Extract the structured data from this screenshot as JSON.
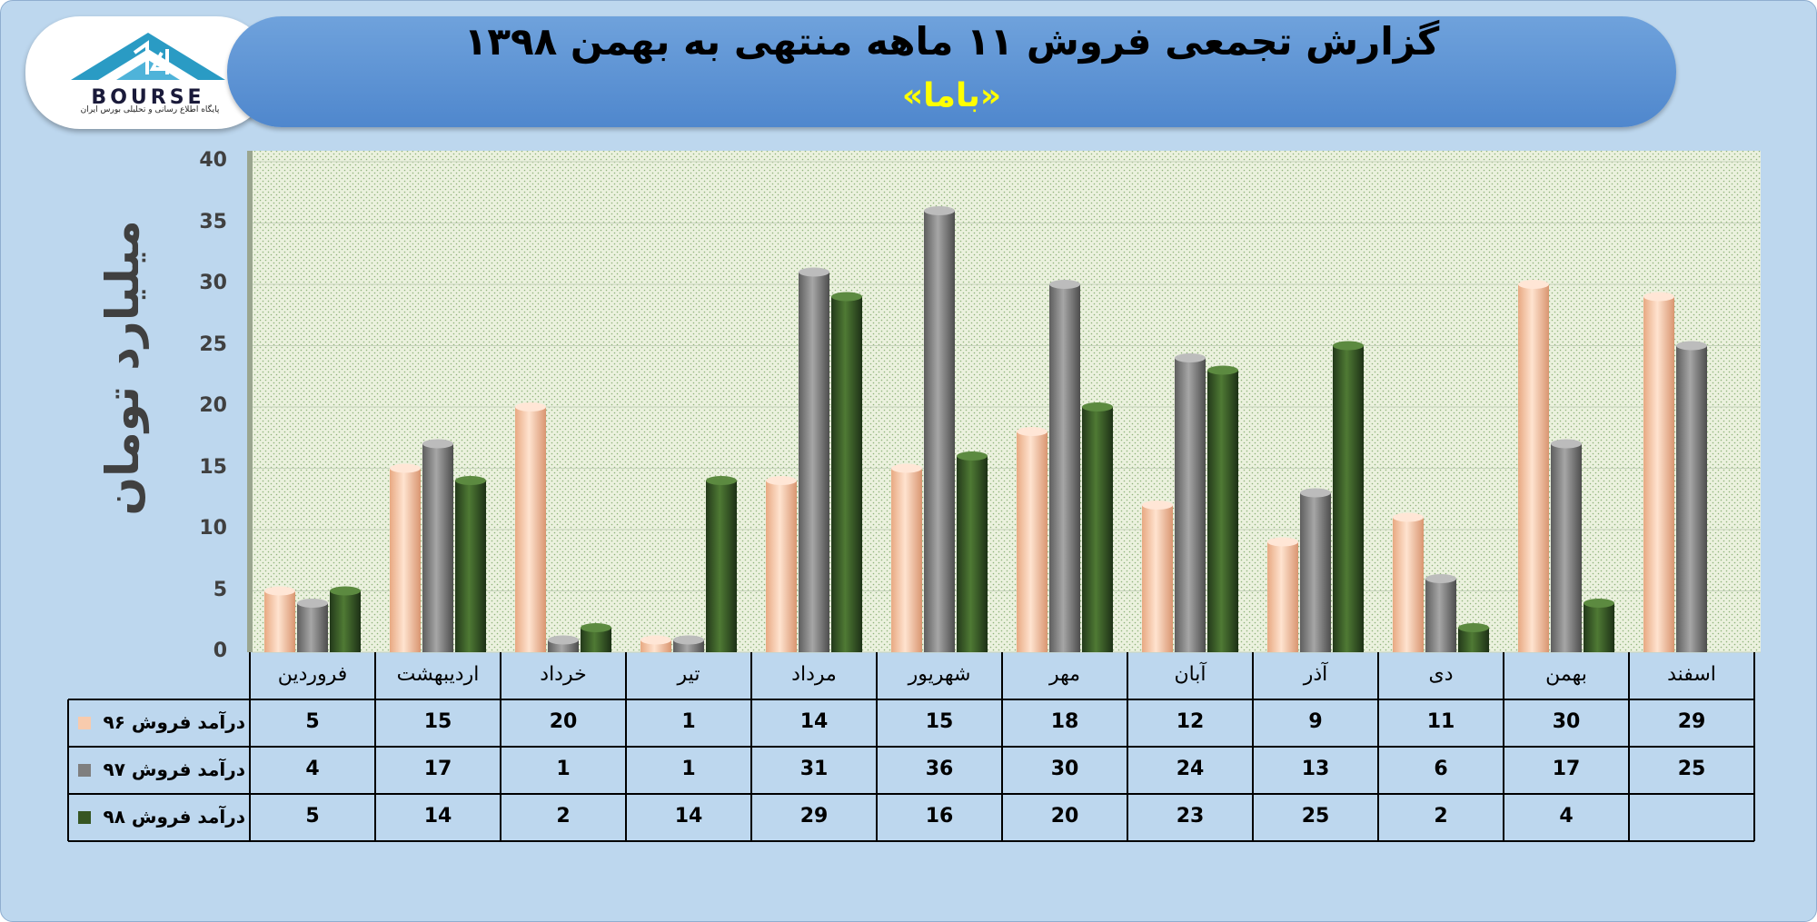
{
  "header": {
    "title": "گزارش تجمعی فروش ۱۱ ماهه منتهی به بهمن ۱۳۹۸",
    "subtitle": "«باما»"
  },
  "logo": {
    "name": "BOURSE",
    "tagline": "پایگاه اطلاع رسانی و تحلیلی بورس ایران"
  },
  "colors": {
    "s96": "#f8cbad",
    "s97": "#7f7f7f",
    "s98": "#375623",
    "plot_bg": "#ebf1de",
    "frame_bg": "#bdd7ee"
  },
  "chart_data": {
    "type": "bar",
    "ylabel": "میلیارد تومان",
    "ylim": [
      0,
      40
    ],
    "yticks": [
      "0",
      "5",
      "10",
      "15",
      "20",
      "25",
      "30",
      "35",
      "40"
    ],
    "grid": true,
    "categories": [
      "فروردین",
      "اردیبهشت",
      "خرداد",
      "تیر",
      "مرداد",
      "شهریور",
      "مهر",
      "آبان",
      "آذر",
      "دی",
      "بهمن",
      "اسفند"
    ],
    "series": [
      {
        "name": "درآمد فروش ۹۶",
        "values": [
          5,
          15,
          20,
          1,
          14,
          15,
          18,
          12,
          9,
          11,
          30,
          29
        ]
      },
      {
        "name": "درآمد فروش ۹۷",
        "values": [
          4,
          17,
          1,
          1,
          31,
          36,
          30,
          24,
          13,
          6,
          17,
          25
        ]
      },
      {
        "name": "درآمد فروش ۹۸",
        "values": [
          5,
          14,
          2,
          14,
          29,
          16,
          20,
          23,
          25,
          2,
          4,
          null
        ]
      }
    ]
  }
}
